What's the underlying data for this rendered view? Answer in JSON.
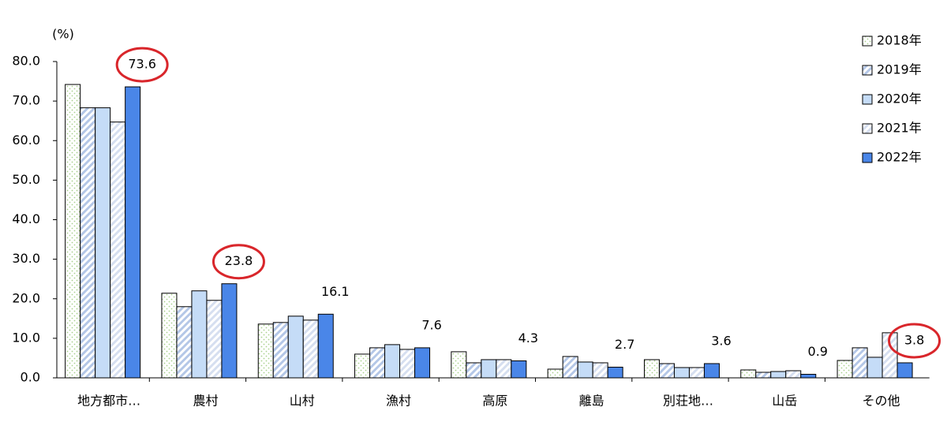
{
  "chart_data": {
    "type": "bar",
    "y_unit_label": "(%)",
    "categories": [
      "地方都市…",
      "農村",
      "山村",
      "漁村",
      "高原",
      "離島",
      "別荘地…",
      "山岳",
      "その他"
    ],
    "series": [
      {
        "name": "2018年",
        "color": "#a9d18e",
        "pattern": "dots",
        "values": [
          74.2,
          21.4,
          13.6,
          6.0,
          6.6,
          2.2,
          4.6,
          2.0,
          4.4
        ]
      },
      {
        "name": "2019年",
        "color": "#b4c7e7",
        "pattern": "diagonal",
        "values": [
          68.3,
          18.0,
          14.0,
          7.6,
          3.8,
          5.4,
          3.6,
          1.4,
          7.6
        ]
      },
      {
        "name": "2020年",
        "color": "#c5dcf7",
        "pattern": "solid",
        "values": [
          68.3,
          22.0,
          15.6,
          8.4,
          4.6,
          4.0,
          2.6,
          1.6,
          5.2
        ]
      },
      {
        "name": "2021年",
        "color": "#d6dff0",
        "pattern": "diagonal",
        "values": [
          64.7,
          19.6,
          14.6,
          7.2,
          4.6,
          3.8,
          2.6,
          1.8,
          11.4
        ]
      },
      {
        "name": "2022年",
        "color": "#4a86e8",
        "pattern": "solid",
        "values": [
          73.6,
          23.8,
          16.1,
          7.6,
          4.3,
          2.7,
          3.6,
          0.9,
          3.8
        ],
        "show_labels": true,
        "highlight": [
          0,
          1,
          8
        ],
        "highlight_color": "#d9262b"
      }
    ],
    "ylim": [
      0,
      80
    ],
    "yticks": [
      {
        "value": 0,
        "label": "0.0"
      },
      {
        "value": 10,
        "label": "10.0"
      },
      {
        "value": 20,
        "label": "20.0"
      },
      {
        "value": 30,
        "label": "30.0"
      },
      {
        "value": 40,
        "label": "40.0"
      },
      {
        "value": 50,
        "label": "50.0"
      },
      {
        "value": 60,
        "label": "60.0"
      },
      {
        "value": 70,
        "label": "70.0"
      },
      {
        "value": 80,
        "label": "80.0"
      }
    ],
    "grid": false,
    "legend": "top-right"
  }
}
